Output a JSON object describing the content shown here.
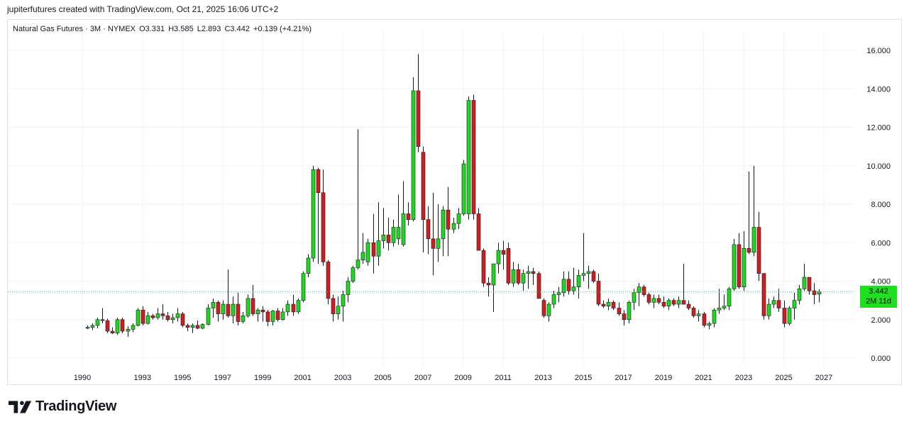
{
  "header": {
    "attribution": "jupiterfutures created with TradingView.com, Oct 21, 2025 16:06 UTC+2"
  },
  "legend": {
    "symbol": "Natural Gas Futures · 3M · NYMEX",
    "open": "O3.331",
    "high": "H3.585",
    "low": "L2.893",
    "close": "C3.442",
    "change": "+0.139 (+4.21%)"
  },
  "price_tag": {
    "value": "3.442",
    "countdown": "2M 11d"
  },
  "branding": {
    "name": "TradingView"
  },
  "colors": {
    "up": "#1fd91f",
    "down": "#d01e1e",
    "wick": "#131722",
    "grid": "#f0f3fa",
    "last_price_line": "#22c55e"
  },
  "chart_data": {
    "type": "candlestick",
    "interval": "3M",
    "x_axis": {
      "type": "date",
      "ticks": [
        "1990",
        "1993",
        "1995",
        "1997",
        "1999",
        "2001",
        "2003",
        "2005",
        "2007",
        "2009",
        "2011",
        "2013",
        "2015",
        "2017",
        "2019",
        "2021",
        "2023",
        "2025",
        "2027"
      ],
      "range": [
        "1989-01-01",
        "2028-07-01"
      ]
    },
    "y_axis": {
      "position": "right",
      "ticks": [
        "0.000",
        "2.000",
        "4.000",
        "6.000",
        "8.000",
        "10.000",
        "12.000",
        "14.000",
        "16.000"
      ],
      "range": [
        -0.5,
        17
      ]
    },
    "grid": true,
    "last_price": 3.442,
    "candles": [
      {
        "t": "1990-04",
        "o": 1.55,
        "h": 1.7,
        "l": 1.5,
        "c": 1.6
      },
      {
        "t": "1990-07",
        "o": 1.6,
        "h": 1.8,
        "l": 1.45,
        "c": 1.7
      },
      {
        "t": "1990-10",
        "o": 1.7,
        "h": 2.1,
        "l": 1.55,
        "c": 2.0
      },
      {
        "t": "1991-01",
        "o": 2.0,
        "h": 2.6,
        "l": 1.8,
        "c": 1.95
      },
      {
        "t": "1991-04",
        "o": 1.95,
        "h": 2.05,
        "l": 1.3,
        "c": 1.4
      },
      {
        "t": "1991-07",
        "o": 1.4,
        "h": 1.6,
        "l": 1.25,
        "c": 1.3
      },
      {
        "t": "1991-10",
        "o": 1.3,
        "h": 2.1,
        "l": 1.2,
        "c": 2.0
      },
      {
        "t": "1992-01",
        "o": 2.0,
        "h": 2.1,
        "l": 1.3,
        "c": 1.4
      },
      {
        "t": "1992-04",
        "o": 1.4,
        "h": 1.65,
        "l": 1.1,
        "c": 1.5
      },
      {
        "t": "1992-07",
        "o": 1.5,
        "h": 1.8,
        "l": 1.35,
        "c": 1.7
      },
      {
        "t": "1992-10",
        "o": 1.7,
        "h": 2.6,
        "l": 1.65,
        "c": 2.5
      },
      {
        "t": "1993-01",
        "o": 2.5,
        "h": 2.7,
        "l": 1.7,
        "c": 1.8
      },
      {
        "t": "1993-04",
        "o": 1.8,
        "h": 2.4,
        "l": 1.75,
        "c": 2.2
      },
      {
        "t": "1993-07",
        "o": 2.2,
        "h": 2.3,
        "l": 2.0,
        "c": 2.1
      },
      {
        "t": "1993-10",
        "o": 2.1,
        "h": 2.6,
        "l": 2.0,
        "c": 2.3
      },
      {
        "t": "1994-01",
        "o": 2.3,
        "h": 2.8,
        "l": 2.0,
        "c": 2.2
      },
      {
        "t": "1994-04",
        "o": 2.2,
        "h": 2.4,
        "l": 1.9,
        "c": 2.0
      },
      {
        "t": "1994-07",
        "o": 2.0,
        "h": 2.3,
        "l": 1.8,
        "c": 2.1
      },
      {
        "t": "1994-10",
        "o": 2.1,
        "h": 2.6,
        "l": 1.9,
        "c": 2.3
      },
      {
        "t": "1995-01",
        "o": 2.3,
        "h": 2.4,
        "l": 1.6,
        "c": 1.7
      },
      {
        "t": "1995-04",
        "o": 1.7,
        "h": 1.8,
        "l": 1.4,
        "c": 1.6
      },
      {
        "t": "1995-07",
        "o": 1.6,
        "h": 1.8,
        "l": 1.3,
        "c": 1.7
      },
      {
        "t": "1995-10",
        "o": 1.7,
        "h": 1.95,
        "l": 1.5,
        "c": 1.55
      },
      {
        "t": "1996-01",
        "o": 1.55,
        "h": 1.8,
        "l": 1.5,
        "c": 1.75
      },
      {
        "t": "1996-04",
        "o": 1.75,
        "h": 2.8,
        "l": 1.7,
        "c": 2.6
      },
      {
        "t": "1996-07",
        "o": 2.6,
        "h": 3.1,
        "l": 2.1,
        "c": 2.9
      },
      {
        "t": "1996-10",
        "o": 2.9,
        "h": 3.0,
        "l": 1.9,
        "c": 2.3
      },
      {
        "t": "1997-01",
        "o": 2.3,
        "h": 3.0,
        "l": 2.0,
        "c": 2.8
      },
      {
        "t": "1997-04",
        "o": 2.8,
        "h": 4.6,
        "l": 2.1,
        "c": 2.2
      },
      {
        "t": "1997-07",
        "o": 2.2,
        "h": 3.2,
        "l": 1.8,
        "c": 2.8
      },
      {
        "t": "1997-10",
        "o": 2.8,
        "h": 3.4,
        "l": 1.7,
        "c": 1.9
      },
      {
        "t": "1998-01",
        "o": 1.9,
        "h": 2.4,
        "l": 1.8,
        "c": 2.2
      },
      {
        "t": "1998-04",
        "o": 2.2,
        "h": 3.3,
        "l": 2.1,
        "c": 3.1
      },
      {
        "t": "1998-07",
        "o": 3.1,
        "h": 3.8,
        "l": 2.2,
        "c": 2.3
      },
      {
        "t": "1998-10",
        "o": 2.3,
        "h": 2.6,
        "l": 1.9,
        "c": 2.5
      },
      {
        "t": "1999-01",
        "o": 2.5,
        "h": 2.7,
        "l": 1.9,
        "c": 2.4
      },
      {
        "t": "1999-04",
        "o": 2.4,
        "h": 2.5,
        "l": 1.65,
        "c": 1.9
      },
      {
        "t": "1999-07",
        "o": 1.9,
        "h": 2.5,
        "l": 1.7,
        "c": 2.45
      },
      {
        "t": "1999-10",
        "o": 2.45,
        "h": 2.6,
        "l": 1.9,
        "c": 2.0
      },
      {
        "t": "2000-01",
        "o": 2.0,
        "h": 2.6,
        "l": 1.95,
        "c": 2.4
      },
      {
        "t": "2000-04",
        "o": 2.4,
        "h": 3.0,
        "l": 2.2,
        "c": 2.8
      },
      {
        "t": "2000-07",
        "o": 2.8,
        "h": 3.3,
        "l": 2.2,
        "c": 2.4
      },
      {
        "t": "2000-10",
        "o": 2.4,
        "h": 3.1,
        "l": 2.3,
        "c": 3.0
      },
      {
        "t": "2001-01",
        "o": 3.0,
        "h": 4.5,
        "l": 2.9,
        "c": 4.4
      },
      {
        "t": "2001-04",
        "o": 4.4,
        "h": 5.4,
        "l": 4.2,
        "c": 5.2
      },
      {
        "t": "2001-07",
        "o": 5.2,
        "h": 10.0,
        "l": 5.0,
        "c": 9.8
      },
      {
        "t": "2001-10",
        "o": 9.8,
        "h": 9.9,
        "l": 4.9,
        "c": 8.6
      },
      {
        "t": "2002-01",
        "o": 8.6,
        "h": 9.8,
        "l": 4.8,
        "c": 5.0
      },
      {
        "t": "2002-04",
        "o": 5.0,
        "h": 5.1,
        "l": 2.8,
        "c": 3.1
      },
      {
        "t": "2002-07",
        "o": 3.1,
        "h": 3.3,
        "l": 1.9,
        "c": 2.3
      },
      {
        "t": "2002-10",
        "o": 2.3,
        "h": 3.2,
        "l": 2.0,
        "c": 2.7
      },
      {
        "t": "2003-01",
        "o": 2.7,
        "h": 3.5,
        "l": 1.9,
        "c": 3.3
      },
      {
        "t": "2003-04",
        "o": 3.3,
        "h": 4.2,
        "l": 2.9,
        "c": 4.0
      },
      {
        "t": "2003-07",
        "o": 4.0,
        "h": 4.8,
        "l": 3.9,
        "c": 4.7
      },
      {
        "t": "2003-10",
        "o": 4.7,
        "h": 11.9,
        "l": 4.6,
        "c": 5.1
      },
      {
        "t": "2004-01",
        "o": 5.1,
        "h": 6.5,
        "l": 4.9,
        "c": 5.5
      },
      {
        "t": "2004-04",
        "o": 5.0,
        "h": 6.2,
        "l": 4.8,
        "c": 6.0
      },
      {
        "t": "2004-07",
        "o": 6.0,
        "h": 7.5,
        "l": 4.4,
        "c": 5.3
      },
      {
        "t": "2004-10",
        "o": 5.3,
        "h": 8.1,
        "l": 4.8,
        "c": 6.1
      },
      {
        "t": "2005-01",
        "o": 6.1,
        "h": 7.8,
        "l": 5.7,
        "c": 6.4
      },
      {
        "t": "2005-04",
        "o": 6.4,
        "h": 7.3,
        "l": 5.6,
        "c": 6.0
      },
      {
        "t": "2005-07",
        "o": 6.0,
        "h": 7.2,
        "l": 5.8,
        "c": 6.8
      },
      {
        "t": "2005-10",
        "o": 6.2,
        "h": 8.5,
        "l": 5.9,
        "c": 6.8
      },
      {
        "t": "2006-01",
        "o": 5.9,
        "h": 9.2,
        "l": 5.8,
        "c": 7.5
      },
      {
        "t": "2006-04",
        "o": 7.5,
        "h": 8.1,
        "l": 6.9,
        "c": 7.2
      },
      {
        "t": "2006-07",
        "o": 7.2,
        "h": 14.6,
        "l": 7.1,
        "c": 13.9
      },
      {
        "t": "2006-10",
        "o": 13.9,
        "h": 15.8,
        "l": 10.7,
        "c": 11.0
      },
      {
        "t": "2007-01",
        "o": 10.7,
        "h": 11.0,
        "l": 5.5,
        "c": 7.2
      },
      {
        "t": "2007-04",
        "o": 7.2,
        "h": 7.9,
        "l": 5.4,
        "c": 6.2
      },
      {
        "t": "2007-07",
        "o": 6.2,
        "h": 8.6,
        "l": 4.3,
        "c": 5.7
      },
      {
        "t": "2007-10",
        "o": 5.7,
        "h": 8.0,
        "l": 5.0,
        "c": 6.2
      },
      {
        "t": "2008-01",
        "o": 6.2,
        "h": 7.9,
        "l": 5.3,
        "c": 7.7
      },
      {
        "t": "2008-04",
        "o": 7.7,
        "h": 8.9,
        "l": 5.3,
        "c": 6.7
      },
      {
        "t": "2008-07",
        "o": 6.7,
        "h": 7.3,
        "l": 6.5,
        "c": 7.0
      },
      {
        "t": "2008-10",
        "o": 7.0,
        "h": 7.8,
        "l": 6.7,
        "c": 7.5
      },
      {
        "t": "2009-01",
        "o": 7.5,
        "h": 10.3,
        "l": 7.4,
        "c": 10.1
      },
      {
        "t": "2009-04",
        "o": 7.5,
        "h": 13.6,
        "l": 7.2,
        "c": 13.4
      },
      {
        "t": "2009-07",
        "o": 13.4,
        "h": 13.7,
        "l": 7.2,
        "c": 7.5
      },
      {
        "t": "2009-10",
        "o": 7.5,
        "h": 7.8,
        "l": 5.7,
        "c": 5.6
      },
      {
        "t": "2010-01",
        "o": 5.6,
        "h": 5.7,
        "l": 3.7,
        "c": 3.9
      },
      {
        "t": "2010-04",
        "o": 3.9,
        "h": 4.2,
        "l": 3.2,
        "c": 3.8
      },
      {
        "t": "2010-07",
        "o": 3.8,
        "h": 4.8,
        "l": 2.4,
        "c": 4.9
      },
      {
        "t": "2010-10",
        "o": 4.9,
        "h": 6.0,
        "l": 4.4,
        "c": 5.6
      },
      {
        "t": "2011-01",
        "o": 5.6,
        "h": 6.1,
        "l": 4.6,
        "c": 5.4
      },
      {
        "t": "2011-04",
        "o": 5.7,
        "h": 6.0,
        "l": 3.8,
        "c": 3.9
      },
      {
        "t": "2011-07",
        "o": 3.9,
        "h": 5.0,
        "l": 3.7,
        "c": 4.6
      },
      {
        "t": "2011-10",
        "o": 4.6,
        "h": 4.9,
        "l": 3.8,
        "c": 3.9
      },
      {
        "t": "2012-01",
        "o": 3.9,
        "h": 4.6,
        "l": 3.5,
        "c": 4.4
      },
      {
        "t": "2012-04",
        "o": 4.4,
        "h": 4.8,
        "l": 3.6,
        "c": 4.5
      },
      {
        "t": "2012-07",
        "o": 4.5,
        "h": 4.7,
        "l": 3.8,
        "c": 4.4
      },
      {
        "t": "2012-10",
        "o": 4.4,
        "h": 4.5,
        "l": 3.1,
        "c": 3.1
      },
      {
        "t": "2013-01",
        "o": 3.0,
        "h": 3.1,
        "l": 2.1,
        "c": 2.2
      },
      {
        "t": "2013-04",
        "o": 2.2,
        "h": 2.9,
        "l": 1.9,
        "c": 2.8
      },
      {
        "t": "2013-07",
        "o": 2.8,
        "h": 3.5,
        "l": 2.6,
        "c": 3.3
      },
      {
        "t": "2013-10",
        "o": 3.3,
        "h": 3.7,
        "l": 2.9,
        "c": 3.4
      },
      {
        "t": "2014-01",
        "o": 3.4,
        "h": 4.5,
        "l": 3.2,
        "c": 4.1
      },
      {
        "t": "2014-04",
        "o": 4.1,
        "h": 4.5,
        "l": 3.3,
        "c": 3.5
      },
      {
        "t": "2014-07",
        "o": 3.5,
        "h": 4.7,
        "l": 3.3,
        "c": 3.7
      },
      {
        "t": "2014-10",
        "o": 3.7,
        "h": 4.6,
        "l": 3.1,
        "c": 4.3
      },
      {
        "t": "2015-01",
        "o": 4.3,
        "h": 6.5,
        "l": 4.0,
        "c": 4.4
      },
      {
        "t": "2015-04",
        "o": 4.4,
        "h": 4.8,
        "l": 3.6,
        "c": 4.5
      },
      {
        "t": "2015-07",
        "o": 4.5,
        "h": 4.6,
        "l": 3.9,
        "c": 4.0
      },
      {
        "t": "2015-10",
        "o": 4.0,
        "h": 4.4,
        "l": 2.7,
        "c": 2.8
      },
      {
        "t": "2016-01",
        "o": 2.8,
        "h": 3.0,
        "l": 2.6,
        "c": 2.7
      },
      {
        "t": "2016-04",
        "o": 2.7,
        "h": 3.1,
        "l": 2.5,
        "c": 2.9
      },
      {
        "t": "2016-07",
        "o": 2.9,
        "h": 3.0,
        "l": 2.5,
        "c": 2.6
      },
      {
        "t": "2016-10",
        "o": 2.6,
        "h": 2.9,
        "l": 2.2,
        "c": 2.3
      },
      {
        "t": "2017-01",
        "o": 2.3,
        "h": 2.5,
        "l": 1.7,
        "c": 2.0
      },
      {
        "t": "2017-04",
        "o": 2.0,
        "h": 3.0,
        "l": 1.8,
        "c": 2.9
      },
      {
        "t": "2017-07",
        "o": 2.9,
        "h": 3.6,
        "l": 2.5,
        "c": 3.4
      },
      {
        "t": "2017-10",
        "o": 3.4,
        "h": 3.9,
        "l": 2.7,
        "c": 3.7
      },
      {
        "t": "2018-01",
        "o": 3.7,
        "h": 3.8,
        "l": 3.2,
        "c": 3.3
      },
      {
        "t": "2018-04",
        "o": 3.3,
        "h": 3.4,
        "l": 2.8,
        "c": 2.9
      },
      {
        "t": "2018-07",
        "o": 2.9,
        "h": 3.3,
        "l": 2.6,
        "c": 3.1
      },
      {
        "t": "2018-10",
        "o": 3.1,
        "h": 3.3,
        "l": 2.8,
        "c": 2.9
      },
      {
        "t": "2019-01",
        "o": 2.9,
        "h": 3.2,
        "l": 2.6,
        "c": 2.7
      },
      {
        "t": "2019-04",
        "o": 2.7,
        "h": 3.1,
        "l": 2.5,
        "c": 3.0
      },
      {
        "t": "2019-07",
        "o": 3.0,
        "h": 3.1,
        "l": 2.7,
        "c": 2.8
      },
      {
        "t": "2019-10",
        "o": 2.8,
        "h": 3.2,
        "l": 2.6,
        "c": 3.0
      },
      {
        "t": "2020-01",
        "o": 3.0,
        "h": 4.9,
        "l": 2.9,
        "c": 2.8
      },
      {
        "t": "2020-04",
        "o": 2.8,
        "h": 3.0,
        "l": 2.5,
        "c": 2.6
      },
      {
        "t": "2020-07",
        "o": 2.6,
        "h": 2.7,
        "l": 2.1,
        "c": 2.2
      },
      {
        "t": "2020-10",
        "o": 2.2,
        "h": 2.5,
        "l": 1.9,
        "c": 2.3
      },
      {
        "t": "2021-01",
        "o": 2.3,
        "h": 2.4,
        "l": 1.6,
        "c": 1.7
      },
      {
        "t": "2021-04",
        "o": 1.7,
        "h": 1.9,
        "l": 1.5,
        "c": 1.8
      },
      {
        "t": "2021-07",
        "o": 1.8,
        "h": 2.6,
        "l": 1.6,
        "c": 2.5
      },
      {
        "t": "2021-10",
        "o": 2.5,
        "h": 3.6,
        "l": 2.3,
        "c": 2.6
      },
      {
        "t": "2022-01",
        "o": 2.6,
        "h": 3.3,
        "l": 2.5,
        "c": 2.7
      },
      {
        "t": "2022-04",
        "o": 2.7,
        "h": 3.7,
        "l": 2.5,
        "c": 3.6
      },
      {
        "t": "2022-07",
        "o": 3.6,
        "h": 6.2,
        "l": 3.5,
        "c": 5.9
      },
      {
        "t": "2022-10",
        "o": 5.9,
        "h": 6.5,
        "l": 3.6,
        "c": 3.7
      },
      {
        "t": "2023-01",
        "o": 3.7,
        "h": 6.6,
        "l": 3.5,
        "c": 5.7
      },
      {
        "t": "2023-04",
        "o": 5.7,
        "h": 9.7,
        "l": 5.4,
        "c": 5.5
      },
      {
        "t": "2023-07",
        "o": 5.5,
        "h": 10.0,
        "l": 5.3,
        "c": 6.8
      },
      {
        "t": "2023-10",
        "o": 6.8,
        "h": 7.6,
        "l": 4.0,
        "c": 4.4
      },
      {
        "t": "2024-01",
        "o": 4.4,
        "h": 4.4,
        "l": 2.0,
        "c": 2.2
      },
      {
        "t": "2024-04",
        "o": 2.2,
        "h": 3.1,
        "l": 2.0,
        "c": 2.8
      },
      {
        "t": "2024-07",
        "o": 2.8,
        "h": 3.2,
        "l": 2.6,
        "c": 3.0
      },
      {
        "t": "2024-10",
        "o": 3.0,
        "h": 3.6,
        "l": 2.4,
        "c": 2.6
      },
      {
        "t": "2025-01",
        "o": 2.6,
        "h": 3.0,
        "l": 1.6,
        "c": 1.8
      },
      {
        "t": "2025-04",
        "o": 1.8,
        "h": 2.7,
        "l": 1.7,
        "c": 2.6
      },
      {
        "t": "2025-07",
        "o": 2.6,
        "h": 3.4,
        "l": 2.0,
        "c": 3.0
      },
      {
        "t": "2025-10",
        "o": 3.0,
        "h": 3.8,
        "l": 2.8,
        "c": 3.6
      },
      {
        "t": "2026-01",
        "o": 3.6,
        "h": 4.9,
        "l": 3.5,
        "c": 4.2
      },
      {
        "t": "2026-04",
        "o": 4.2,
        "h": 4.2,
        "l": 3.3,
        "c": 3.5
      },
      {
        "t": "2026-07",
        "o": 3.5,
        "h": 3.9,
        "l": 2.8,
        "c": 3.3
      },
      {
        "t": "2026-10",
        "o": 3.331,
        "h": 3.585,
        "l": 2.893,
        "c": 3.442
      }
    ]
  }
}
